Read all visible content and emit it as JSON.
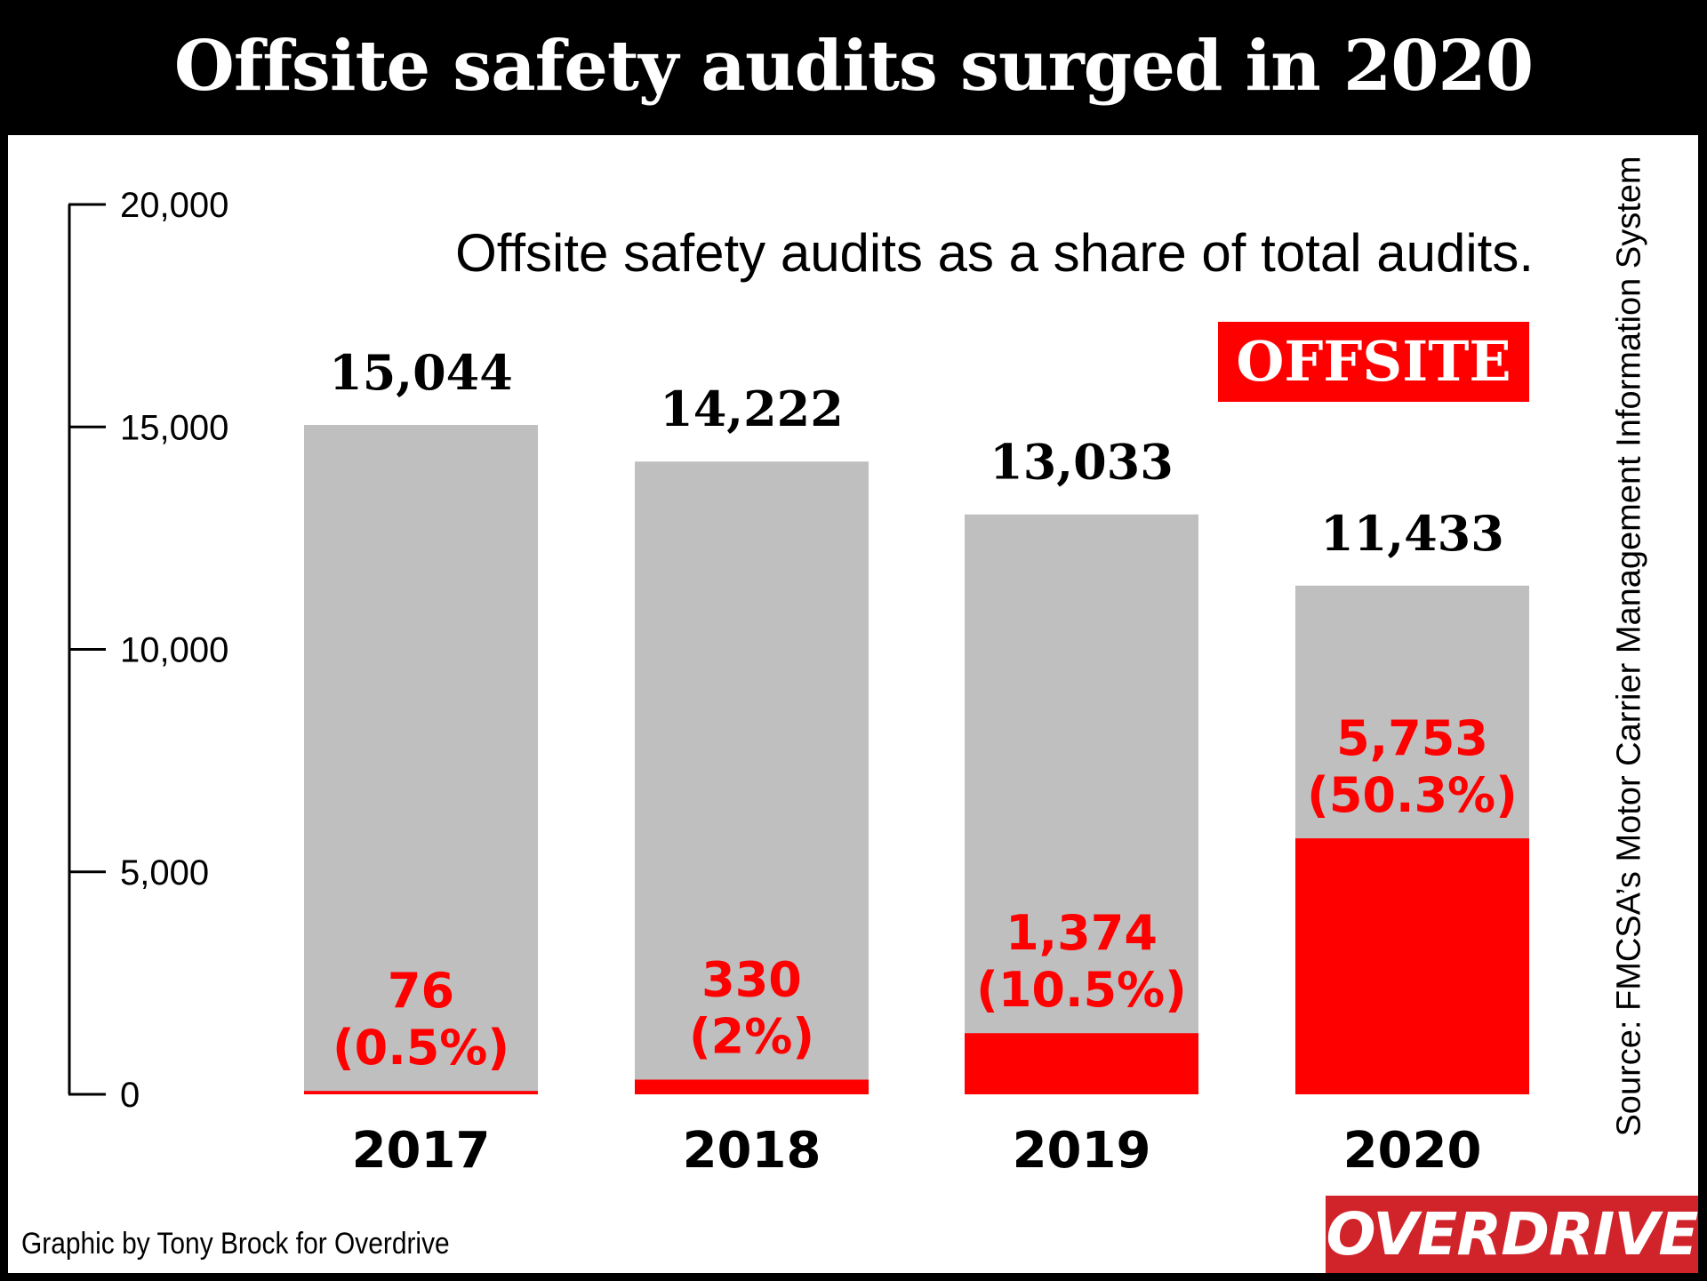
{
  "title": "Offsite safety audits surged in 2020",
  "subtitle": "Offsite safety audits as a share of total audits.",
  "source": "Source: FMCSA’s Motor Carrier Management Information System",
  "credit": "Graphic by Tony Brock for Overdrive",
  "logo": "OVERDRIVE",
  "colors": {
    "total": "#bfbfbf",
    "offsite": "#ff0000",
    "header": "#000000",
    "logo_bg": "#d0232a"
  },
  "chart_data": {
    "type": "bar",
    "stacked": "overlay",
    "categories": [
      "2017",
      "2018",
      "2019",
      "2020"
    ],
    "series": [
      {
        "name": "",
        "values": [
          15044,
          14222,
          13033,
          11433
        ],
        "labels": [
          "15,044",
          "14,222",
          "13,033",
          "11,433"
        ]
      },
      {
        "name": "OFFSITE",
        "values": [
          76,
          330,
          1374,
          5753
        ],
        "labels": [
          "76",
          "330",
          "1,374",
          "5,753"
        ],
        "pct_labels": [
          "(0.5%)",
          "(2%)",
          "(10.5%)",
          "(50.3%)"
        ]
      }
    ],
    "yticks": [
      "0",
      "5,000",
      "10,000",
      "15,000",
      "20,000"
    ],
    "ytick_values": [
      0,
      5000,
      10000,
      15000,
      20000
    ],
    "ylim": [
      0,
      20000
    ],
    "legend": "top-right",
    "grid": false
  }
}
